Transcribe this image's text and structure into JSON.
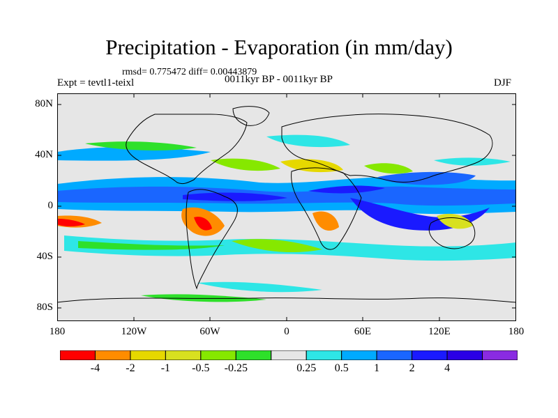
{
  "title": "Precipitation - Evaporation (in mm/day)",
  "stats": "rmsd= 0.775472 diff= 0.00443879",
  "expt": "Expt = tevtl1-teixl",
  "period": "0011kyr BP - 0011kyr BP",
  "season": "DJF",
  "y_axis_labels": [
    "80N",
    "40N",
    "0",
    "40S",
    "80S"
  ],
  "x_axis_labels": [
    "180",
    "120W",
    "60W",
    "0",
    "60E",
    "120E",
    "180"
  ],
  "colorbar": {
    "colors": [
      "#ff0000",
      "#ff8c00",
      "#e6d800",
      "#d8e020",
      "#86e800",
      "#2ee02a",
      "#e6e6e6",
      "#2ee6e6",
      "#00aaff",
      "#1a66ff",
      "#1a1aff",
      "#2a00e6",
      "#8a2be2"
    ],
    "labels": [
      "-4",
      "-2",
      "-1",
      "-0.5",
      "-0.25",
      "0.25",
      "0.5",
      "1",
      "2",
      "4"
    ]
  }
}
